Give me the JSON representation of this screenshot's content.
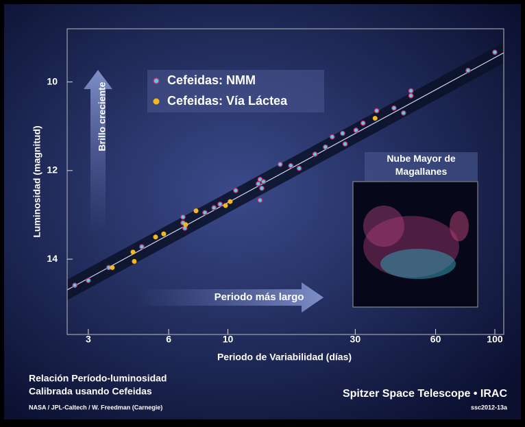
{
  "chart_data": {
    "type": "scatter",
    "title": "Relación Período-luminosidad",
    "subtitle": "Calibrada usando Cefeidas",
    "credit": "NASA / JPL-Caltech / W. Freedman (Carnegie)",
    "brand": "Spitzer Space Telescope • IRAC",
    "code": "ssc2012-13a",
    "x_label": "Periodo de Variabilidad (días)",
    "y_label": "Luminosidad (magnitud)",
    "annotations": [
      "Brillo creciente",
      "Periodo más largo",
      "Nube Mayor de Magallanes"
    ],
    "x_log": true,
    "y_inverted": true,
    "xlim": [
      2.5,
      108
    ],
    "ylim": [
      8.8,
      15.7
    ],
    "xticks": [
      3,
      6,
      10,
      30,
      60,
      100
    ],
    "yticks": [
      10,
      12,
      14
    ],
    "series": [
      {
        "name": "Cefeidas: NMM",
        "color": "#5fc8e8",
        "x": [
          2.67,
          3.0,
          3.58,
          4.76,
          6.79,
          6.79,
          6.9,
          8.2,
          8.87,
          9.35,
          10.7,
          13.0,
          13.2,
          13.4,
          13.6,
          13.2,
          15.7,
          17.2,
          18.5,
          21.2,
          23.2,
          24.6,
          26.9,
          27.5,
          30.2,
          32.1,
          36.1,
          41.9,
          45.5,
          48.5,
          48.5,
          79.4,
          100
        ],
        "values": [
          14.59,
          14.48,
          14.19,
          13.72,
          13.18,
          13.05,
          13.3,
          12.95,
          12.84,
          12.76,
          12.45,
          12.3,
          12.2,
          12.4,
          12.25,
          12.67,
          11.86,
          11.89,
          11.95,
          11.63,
          11.47,
          11.24,
          11.16,
          11.4,
          11.09,
          10.93,
          10.65,
          10.59,
          10.7,
          10.31,
          10.2,
          9.74,
          9.33
        ]
      },
      {
        "name": "Cefeidas: Vía Láctea",
        "color": "#f5b81c",
        "x": [
          3.69,
          4.41,
          4.46,
          5.36,
          5.75,
          6.95,
          7.6,
          9.8,
          10.2,
          35.6
        ],
        "values": [
          14.19,
          13.84,
          14.05,
          13.5,
          13.43,
          13.22,
          12.91,
          12.79,
          12.7,
          10.82
        ]
      }
    ]
  }
}
